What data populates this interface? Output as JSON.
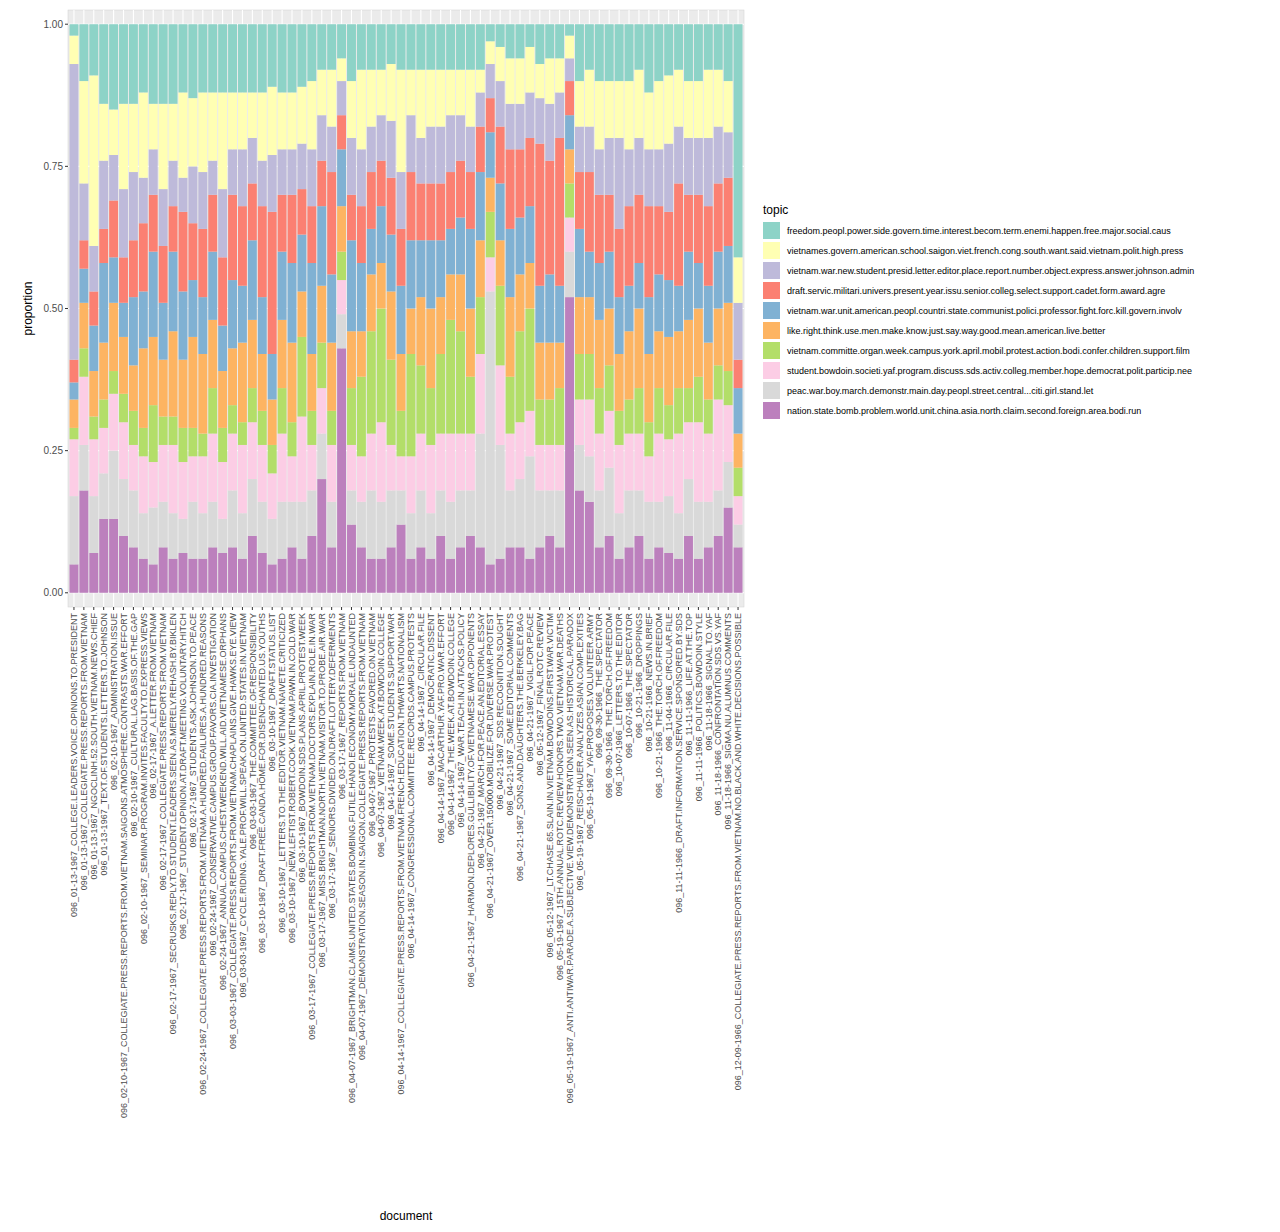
{
  "chart_data": {
    "type": "bar",
    "stacked": true,
    "grid": true,
    "legend": "right",
    "legend_title": "topic",
    "x_label": "document",
    "y_label": "proportion",
    "ylim": [
      -0.025,
      1.025
    ],
    "yticks": [
      {
        "value": 0,
        "label": "0.00"
      },
      {
        "value": 0.25,
        "label": "0.25"
      },
      {
        "value": 0.5,
        "label": "0.50"
      },
      {
        "value": 0.75,
        "label": "0.75"
      },
      {
        "value": 1,
        "label": "1.00"
      }
    ],
    "categories": [
      "096_01-13-1967_COLLEGE.LEADERS.VOICE.OPINIONS.TO.PRESIDENT",
      "096_01-13-1967_COLLEGIATE.PRESS.REPORTS.FROM.VIETNAM",
      "096_01-13-1967_NGOCLINH.52.SOUTH.VIETNAM.NEWS.CHIEF",
      "096_01-13-1967_TEXT.OF.STUDENTS.LETTERS.TO.JOHNSON",
      "096_02-10-1967_ADMINISTRATION.ISSUE",
      "096_02-10-1967_COLLEGIATE.PRESS.REPORTS.FROM.VIETNAM.SAIGONS.ATMOSPHERE.CONTRASTS.WAR.EFFORT",
      "096_02-10-1967_CULTURAL.LAG.BASIS.OF.THE.GAP",
      "096_02-10-1967_SEMINAR.PROGRAM.INVITES.FACULTY.TO.EXPRESS.VIEWS",
      "096_02-17-1967_A.LETTER.FROM.VIETNAM",
      "096_02-17-1967_COLLEGIATE.PRESS.REPORTS.FROM.VIETNAM",
      "096_02-17-1967_SECRUSKS.REPLY.TO.STUDENT.LEADERS.SEEN.AS.MERELY.REHASH.BY.BIKLEN",
      "096_02-17-1967_STUDENT.OPINION.AT.DRAFT.MEETING.VOLUNTARY.HITCH",
      "096_02-17-1967_STUDENTS.ASK.JOHNSON.TO.PEACE",
      "096_02-24-1967_COLLEGIATE.PRESS.REPORTS.FROM.VIETNAM.A.HUNDRED.FAILURES.A.HUNDRED.REASONS",
      "096_02-24-1967_CONSERVATIVE.CAMPUS.GROUP.FAVORS.CIA.INVESTIGATION",
      "096_02-24-1967_ANNUAL.CAMPUS.CHEST.WEEKEND.WILL.AID.VIETNAMESE.ORPHANS",
      "096_03-03-1967_COLLEGIATE.PRESS.REPORTS.FROM.VIETNAM.CHAPLAINS.GIVE.HAWKS.EYE.VIEW",
      "096_03-03-1967_CYCLE.RIDING.YALE.PROF.WILL.SPEAK.ON.UNITED.STATES.IN.VIETNAM",
      "096_03-03-1967_THE.COMMITTEE.OF.RESPONSIBILITY",
      "096_03-10-1967_DRAFT.FREE.CANDA.HOME.FOR.DISENCHANTED.US.YOUTHS",
      "096_03-10-1967_DRAFT.STATUS.LIST",
      "096_03-10-1967_LETTERS.TO.THE.EDITOR.VIETNAM.NAIVETE.CRITICIZED",
      "096_03-10-1967_NEW.LEFTIST.ROBERT.COOK.VIETNAM.PAWN.IN.COLD.WAR",
      "096_03-10-1967_BOWDOIN.SDS.PLANS.APRIL.PROTEST.WEEK",
      "096_03-17-1967_COLLEGIATE.PRESS.REPORTS.FROM.VIETNAM.DOCTORS.EXPLAIN.ROLE.IN.WAR",
      "096_03-17-1967_MISS.BRIGHTMAN.NORTH.VIETNAM.VISITOR.TO.PROBE.AIR.WAR",
      "096_03-17-1967_SENIORS.DIVIDED.ON.DRAFT.LOTTERY.DEFERMENTS",
      "096_03-17-1967_REPORTS.FROM.VIETNAM",
      "096_04-07-1967_BRIGHTMAN.CLAIMS.UNITED.STATES.BOMBING.FUTILE.HANOI.ECONOMY.MORALE.UNDAUNTED",
      "096_04-07-1967_DEMONSTRATION.SEASON.IN.SAIGON.COLLEGIATE.PRESS.REPORTS.FROM.VIETNAM",
      "096_04-07-1967_PROTESTS.FAVORED.ON.VIETNAM",
      "096_04-07-1967_VIETNAM.WEEK.AT.BOWDOIN.COLLEGE",
      "096_04-14-1967_SOME.STUDENTS.SUPPORT.WAR",
      "096_04-14-1967_COLLEGIATE.PRESS.REPORTS.FROM.VIETNAM.FRENCH.EDUCATION.THWARTS.NATIONALISM",
      "096_04-14-1967_CONGRESSIONAL.COMMITTEE.RECORDS.CAMPUS.PROTESTS",
      "096_04-14-1967_CIRCULAR.FILE",
      "096_04-14-1967_DEMOCRATIC.DISSENT",
      "096_04-14-1967_MACARTHUR.YAF.PRO.WAR.EFFORT",
      "096_04-14-1967_THE.WEEK.AT.BOWDOIN.COLLEGE",
      "096_04-14-1967_WAR.TEACH.IN.ATTACKS.POLICY",
      "096_04-21-1967_HARMON.DEPLORES.GULLIBILITY.OF.VIETNAMESE.WAR.OPPONENTS",
      "096_04-21-1967_MARCH.FOR.PEACE.AN.EDITORIAL.ESSAY",
      "096_04-21-1967_OVER.150000.MOBILIZE.FOR.DIVERSE.WAR.PROTEST",
      "096_04-21-1967_SDS.RECOGNITION.SOUGHT",
      "096_04-21-1967_SOME.EDITORIAL.COMMENTS",
      "096_04-21-1967_SONS.AND.DAUGHTERS.THE.BERKELEY.BAG",
      "096_04-21-1967_VIGIL.FOR.PEACE",
      "096_05-12-1967_FINAL.ROTC.REVIEW",
      "096_05-12-1967_LT.CHASE.65.SLAIN.IN.VIETNAM.BOWDOINS.FIRST.WAR.VICTIM",
      "096_05-19-1967_15TH.ANNUAL.ROTC.REVIEW.HONORS.TWO.VIETNAM.WAR.DEATHS",
      "096_05-19-1967_ANTI.ANTIWAR.PARADE.A.SUBJECTIVE.VIEW.DEMONSTRATION.SEEN.AS.HISTORICAL.PARADOX",
      "096_05-19-1967_REISCHAUER.ANALYZES.ASIAN.COMPLEXITIES",
      "096_05-19-1967_YAF.PROPOSES.VOLUNTEER.ARMY",
      "096_09-30-1966_THE.SPECTATOR",
      "096_09-30-1966_THE.TORCH.OF.FREEDOM",
      "096_10-07-1966_LETTERS.TO.THE.EDITOR",
      "096_10-07-1966_THE.SPECTATOR",
      "096_10-21-1966_DROPPINGS",
      "096_10-21-1966_NEWS.IN.BRIEF",
      "096_10-21-1966_THE.TORCH.OF.FREEDOM",
      "096_11-04-1966_CIRCULAR.FILE",
      "096_11-11-1966_DRAFT.INFORMATION.SERVICE.SPONSORED.BY.SDS",
      "096_11-11-1966_LIFE.AT.THE.TOP",
      "096_11-11-1966_POLITICS.BOWDOIN.STYLE",
      "096_11-18-1966_SIGNAL.TO.YAF",
      "096_11-18-1966_CONFRONTATION.SDS.VS.YAF",
      "096_11-18-1966_SIGMA.NU.ALUMNUS.COMMENTS",
      "096_12-09-1966_COLLEGIATE.PRESS.REPORTS.FROM.VIETNAM.NO.BLACK.AND.WHITE.DECISIONS.POSSIBLE"
    ],
    "series": [
      {
        "name": "freedom.peopl.power.side.govern.time.interest.becom.term.enemi.happen.free.major.social.caus",
        "color": "#8DD3C7",
        "values": [
          0.02,
          0.1,
          0.09,
          0.14,
          0.15,
          0.14,
          0.14,
          0.12,
          0.14,
          0.14,
          0.14,
          0.12,
          0.13,
          0.12,
          0.12,
          0.12,
          0.12,
          0.12,
          0.12,
          0.12,
          0.11,
          0.12,
          0.12,
          0.11,
          0.1,
          0.08,
          0.08,
          0.06,
          0.1,
          0.08,
          0.08,
          0.08,
          0.07,
          0.08,
          0.08,
          0.08,
          0.08,
          0.08,
          0.08,
          0.08,
          0.08,
          0.08,
          0.03,
          0.04,
          0.06,
          0.06,
          0.04,
          0.07,
          0.06,
          0.06,
          0.02,
          0.1,
          0.08,
          0.1,
          0.1,
          0.1,
          0.1,
          0.08,
          0.12,
          0.1,
          0.09,
          0.08,
          0.1,
          0.1,
          0.08,
          0.08,
          0.1,
          0.41
        ]
      },
      {
        "name": "vietnames.govern.american.school.saigon.viet.french.cong.south.want.said.vietnam.polit.high.press",
        "color": "#FFFFB3",
        "values": [
          0.05,
          0.18,
          0.3,
          0.1,
          0.08,
          0.15,
          0.12,
          0.15,
          0.08,
          0.15,
          0.1,
          0.15,
          0.12,
          0.14,
          0.12,
          0.17,
          0.1,
          0.1,
          0.08,
          0.12,
          0.12,
          0.1,
          0.1,
          0.1,
          0.12,
          0.08,
          0.1,
          0.04,
          0.1,
          0.14,
          0.1,
          0.08,
          0.1,
          0.18,
          0.08,
          0.12,
          0.1,
          0.1,
          0.08,
          0.08,
          0.1,
          0.04,
          0.04,
          0.06,
          0.08,
          0.08,
          0.08,
          0.06,
          0.08,
          0.06,
          0.04,
          0.08,
          0.1,
          0.12,
          0.1,
          0.1,
          0.12,
          0.12,
          0.1,
          0.12,
          0.12,
          0.1,
          0.1,
          0.1,
          0.12,
          0.1,
          0.09,
          0.08
        ]
      },
      {
        "name": "vietnam.war.new.student.presid.letter.editor.place.report.number.object.express.answer.johnson.admin",
        "color": "#BEBADA",
        "values": [
          0.52,
          0.1,
          0.08,
          0.12,
          0.08,
          0.12,
          0.12,
          0.08,
          0.08,
          0.1,
          0.08,
          0.06,
          0.1,
          0.1,
          0.06,
          0.12,
          0.08,
          0.1,
          0.08,
          0.08,
          0.1,
          0.08,
          0.08,
          0.08,
          0.1,
          0.08,
          0.08,
          0.06,
          0.1,
          0.1,
          0.08,
          0.08,
          0.1,
          0.1,
          0.1,
          0.08,
          0.1,
          0.1,
          0.1,
          0.08,
          0.08,
          0.06,
          0.06,
          0.08,
          0.08,
          0.08,
          0.08,
          0.08,
          0.1,
          0.08,
          0.04,
          0.08,
          0.08,
          0.08,
          0.1,
          0.16,
          0.1,
          0.1,
          0.1,
          0.1,
          0.12,
          0.1,
          0.1,
          0.1,
          0.12,
          0.1,
          0.08,
          0.1
        ]
      },
      {
        "name": "draft.servic.militari.univers.present.year.issu.senior.colleg.select.support.cadet.form.award.agre",
        "color": "#FB8072",
        "values": [
          0.04,
          0.05,
          0.06,
          0.06,
          0.1,
          0.08,
          0.1,
          0.12,
          0.1,
          0.1,
          0.08,
          0.14,
          0.1,
          0.12,
          0.1,
          0.12,
          0.15,
          0.14,
          0.1,
          0.16,
          0.25,
          0.1,
          0.12,
          0.08,
          0.1,
          0.08,
          0.18,
          0.06,
          0.08,
          0.1,
          0.1,
          0.08,
          0.1,
          0.1,
          0.12,
          0.1,
          0.1,
          0.1,
          0.1,
          0.1,
          0.1,
          0.08,
          0.06,
          0.1,
          0.14,
          0.12,
          0.12,
          0.25,
          0.2,
          0.26,
          0.06,
          0.1,
          0.14,
          0.12,
          0.1,
          0.12,
          0.14,
          0.12,
          0.16,
          0.12,
          0.12,
          0.18,
          0.1,
          0.12,
          0.14,
          0.12,
          0.12,
          0.05
        ]
      },
      {
        "name": "vietnam.war.unit.american.peopl.countri.state.communist.polici.professor.fight.forc.kill.govern.involv",
        "color": "#80B1D3",
        "values": [
          0.03,
          0.06,
          0.08,
          0.14,
          0.08,
          0.06,
          0.12,
          0.1,
          0.15,
          0.1,
          0.14,
          0.12,
          0.1,
          0.1,
          0.12,
          0.08,
          0.12,
          0.1,
          0.14,
          0.1,
          0.08,
          0.12,
          0.14,
          0.1,
          0.16,
          0.14,
          0.12,
          0.1,
          0.16,
          0.12,
          0.08,
          0.1,
          0.1,
          0.12,
          0.12,
          0.1,
          0.12,
          0.1,
          0.08,
          0.1,
          0.14,
          0.12,
          0.08,
          0.1,
          0.12,
          0.1,
          0.1,
          0.1,
          0.12,
          0.1,
          0.06,
          0.12,
          0.08,
          0.1,
          0.1,
          0.1,
          0.08,
          0.08,
          0.1,
          0.1,
          0.1,
          0.08,
          0.12,
          0.08,
          0.1,
          0.1,
          0.1,
          0.08
        ]
      },
      {
        "name": "like.right.think.use.men.make.know.just.say.way.good.mean.american.live.better",
        "color": "#FDB462",
        "values": [
          0.05,
          0.08,
          0.08,
          0.1,
          0.12,
          0.1,
          0.08,
          0.14,
          0.12,
          0.1,
          0.15,
          0.12,
          0.16,
          0.14,
          0.12,
          0.1,
          0.1,
          0.14,
          0.12,
          0.1,
          0.08,
          0.12,
          0.14,
          0.08,
          0.1,
          0.1,
          0.12,
          0.08,
          0.1,
          0.08,
          0.1,
          0.08,
          0.12,
          0.1,
          0.08,
          0.12,
          0.14,
          0.1,
          0.08,
          0.1,
          0.12,
          0.1,
          0.06,
          0.08,
          0.14,
          0.1,
          0.08,
          0.1,
          0.1,
          0.08,
          0.06,
          0.1,
          0.1,
          0.12,
          0.1,
          0.1,
          0.12,
          0.14,
          0.12,
          0.1,
          0.12,
          0.1,
          0.12,
          0.12,
          0.1,
          0.1,
          0.12,
          0.06
        ]
      },
      {
        "name": "vietnam.committe.organ.week.campus.york.april.mobil.protest.action.bodi.confer.children.support.film",
        "color": "#B3DE69",
        "values": [
          0.02,
          0.05,
          0.04,
          0.05,
          0.04,
          0.05,
          0.06,
          0.05,
          0.1,
          0.05,
          0.05,
          0.06,
          0.05,
          0.04,
          0.08,
          0.06,
          0.05,
          0.04,
          0.06,
          0.06,
          0.05,
          0.08,
          0.06,
          0.14,
          0.06,
          0.08,
          0.06,
          0.05,
          0.1,
          0.14,
          0.18,
          0.2,
          0.15,
          0.08,
          0.18,
          0.12,
          0.1,
          0.14,
          0.2,
          0.18,
          0.1,
          0.1,
          0.08,
          0.14,
          0.1,
          0.16,
          0.18,
          0.08,
          0.08,
          0.1,
          0.06,
          0.08,
          0.08,
          0.08,
          0.08,
          0.06,
          0.06,
          0.08,
          0.06,
          0.08,
          0.06,
          0.08,
          0.06,
          0.08,
          0.06,
          0.06,
          0.06,
          0.05
        ]
      },
      {
        "name": "student.bowdoin.societi.yaf.program.discuss.sds.activ.colleg.member.hope.democrat.polit.particip.nee",
        "color": "#FCCDE5",
        "values": [
          0.1,
          0.12,
          0.1,
          0.08,
          0.1,
          0.1,
          0.08,
          0.1,
          0.08,
          0.1,
          0.12,
          0.1,
          0.08,
          0.1,
          0.12,
          0.1,
          0.1,
          0.12,
          0.1,
          0.1,
          0.08,
          0.12,
          0.08,
          0.15,
          0.08,
          0.08,
          0.1,
          0.06,
          0.08,
          0.08,
          0.1,
          0.14,
          0.08,
          0.06,
          0.1,
          0.1,
          0.12,
          0.1,
          0.12,
          0.1,
          0.1,
          0.14,
          0.06,
          0.14,
          0.1,
          0.1,
          0.08,
          0.08,
          0.08,
          0.08,
          0.06,
          0.08,
          0.1,
          0.1,
          0.1,
          0.12,
          0.1,
          0.1,
          0.08,
          0.12,
          0.1,
          0.14,
          0.1,
          0.14,
          0.12,
          0.16,
          0.1,
          0.05
        ]
      },
      {
        "name": "peac.war.boy.march.demonstr.main.day.peopl.street.central...citi.girl.stand.let",
        "color": "#D9D9D9",
        "values": [
          0.12,
          0.08,
          0.1,
          0.08,
          0.12,
          0.1,
          0.1,
          0.08,
          0.1,
          0.08,
          0.08,
          0.06,
          0.1,
          0.08,
          0.08,
          0.06,
          0.1,
          0.08,
          0.1,
          0.09,
          0.08,
          0.1,
          0.08,
          0.1,
          0.08,
          0.08,
          0.08,
          0.06,
          0.06,
          0.08,
          0.12,
          0.1,
          0.1,
          0.06,
          0.08,
          0.1,
          0.08,
          0.08,
          0.1,
          0.1,
          0.08,
          0.2,
          0.48,
          0.2,
          0.1,
          0.12,
          0.18,
          0.1,
          0.08,
          0.1,
          0.08,
          0.08,
          0.08,
          0.1,
          0.12,
          0.08,
          0.1,
          0.08,
          0.1,
          0.08,
          0.1,
          0.08,
          0.1,
          0.1,
          0.08,
          0.08,
          0.08,
          0.04
        ]
      },
      {
        "name": "nation.state.bomb.problem.world.unit.china.asia.north.claim.second.foreign.area.bodi.run",
        "color": "#BC80BD",
        "values": [
          0.05,
          0.18,
          0.07,
          0.13,
          0.13,
          0.1,
          0.08,
          0.06,
          0.05,
          0.08,
          0.06,
          0.07,
          0.06,
          0.06,
          0.08,
          0.07,
          0.08,
          0.06,
          0.1,
          0.07,
          0.05,
          0.06,
          0.08,
          0.06,
          0.1,
          0.2,
          0.08,
          0.43,
          0.12,
          0.08,
          0.06,
          0.06,
          0.08,
          0.12,
          0.06,
          0.08,
          0.06,
          0.1,
          0.06,
          0.08,
          0.1,
          0.08,
          0.05,
          0.06,
          0.08,
          0.08,
          0.06,
          0.08,
          0.1,
          0.08,
          0.52,
          0.18,
          0.16,
          0.08,
          0.1,
          0.06,
          0.08,
          0.1,
          0.06,
          0.08,
          0.07,
          0.06,
          0.1,
          0.06,
          0.08,
          0.1,
          0.15,
          0.08
        ]
      }
    ]
  }
}
